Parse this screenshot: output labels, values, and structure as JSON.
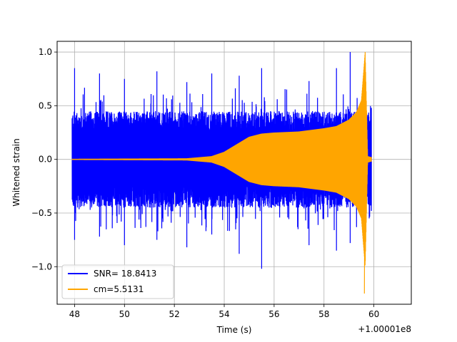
{
  "chart_data": {
    "type": "line",
    "title": "",
    "xlabel": "Time (s)",
    "ylabel": "Whitened strain",
    "x_offset_label": "+1.00001e8",
    "xlim": [
      47.3,
      61.5
    ],
    "ylim": [
      -1.35,
      1.1
    ],
    "x_ticks": [
      48,
      50,
      52,
      54,
      56,
      58,
      60
    ],
    "x_tick_labels": [
      "48",
      "50",
      "52",
      "54",
      "56",
      "58",
      "60"
    ],
    "y_ticks": [
      -1.0,
      -0.5,
      0.0,
      0.5,
      1.0
    ],
    "y_tick_labels": [
      "−1.0",
      "−0.5",
      "0.0",
      "0.5",
      "1.0"
    ],
    "grid": true,
    "legend_position": "lower-left",
    "series": [
      {
        "name": "SNR= 18.8413",
        "color": "#0000ff",
        "kind": "noise",
        "x_range": [
          47.9,
          59.9
        ],
        "typical_envelope": 0.45,
        "x": [
          48.0,
          49.0,
          50.0,
          51.3,
          52.5,
          53.5,
          54.6,
          55.5,
          57.4,
          58.5,
          59.05,
          59.6,
          59.9
        ],
        "peak_max": [
          0.85,
          0.8,
          0.75,
          0.82,
          0.72,
          0.8,
          0.78,
          0.85,
          0.73,
          0.85,
          1.0,
          0.62,
          0.48
        ],
        "peak_min": [
          -0.75,
          -0.72,
          -0.8,
          -0.75,
          -0.82,
          -0.7,
          -0.88,
          -1.02,
          -0.8,
          -0.85,
          -0.78,
          -0.72,
          -0.48
        ]
      },
      {
        "name": "cm=5.5131",
        "color": "#ffa500",
        "kind": "chirp",
        "x": [
          47.9,
          52.5,
          53.5,
          54.0,
          54.5,
          55.0,
          55.5,
          56.0,
          57.0,
          58.0,
          58.5,
          59.0,
          59.3,
          59.5,
          59.65,
          59.75,
          59.9
        ],
        "envelope": [
          0.005,
          0.01,
          0.03,
          0.07,
          0.14,
          0.21,
          0.24,
          0.25,
          0.26,
          0.29,
          0.31,
          0.37,
          0.44,
          0.55,
          1.0,
          0.03,
          0.02
        ],
        "peak_max": 1.0,
        "peak_min": -1.25
      }
    ]
  }
}
